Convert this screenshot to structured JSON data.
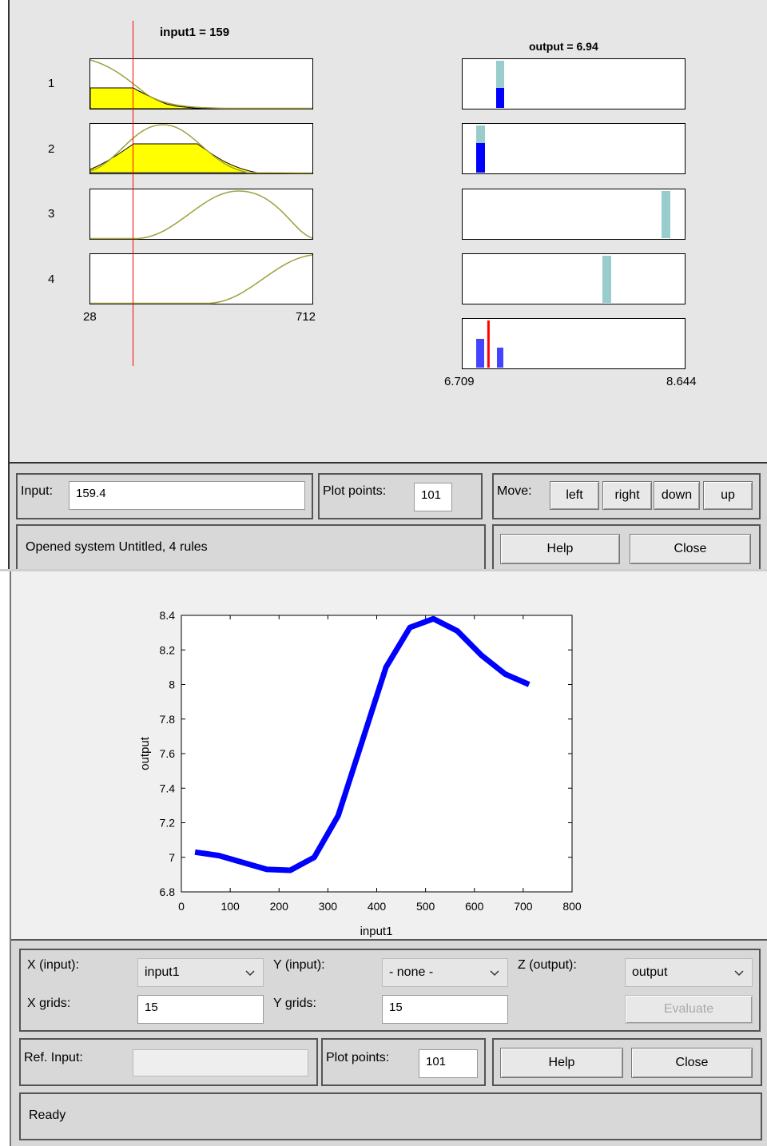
{
  "rule_viewer": {
    "input_title": "input1 = 159",
    "output_title": "output = 6.94",
    "rule_numbers": [
      "1",
      "2",
      "3",
      "4"
    ],
    "input_axis": {
      "min_label": "28",
      "max_label": "712",
      "min": 28,
      "max": 712
    },
    "output_axis": {
      "min_label": "6.709",
      "max_label": "8.644",
      "min": 6.709,
      "max": 8.644
    },
    "input_value": 159.4,
    "output_value": 6.94,
    "colors": {
      "fill": "#ffff00",
      "curve": "#a0a040",
      "marker": "#ff0000",
      "bar_light": "#99cccc",
      "bar_dark": "#0000ff",
      "agg_bar": "#4444ff"
    },
    "input_label": "Input:",
    "input_field": "159.4",
    "plot_points_label": "Plot points:",
    "plot_points_value": "101",
    "move_label": "Move:",
    "move_buttons": {
      "left": "left",
      "right": "right",
      "down": "down",
      "up": "up"
    },
    "status": "Opened system Untitled, 4 rules",
    "help_label": "Help",
    "close_label": "Close"
  },
  "surface_viewer": {
    "chart_data": {
      "type": "line",
      "xlabel": "input1",
      "ylabel": "output",
      "xlim": [
        0,
        800
      ],
      "ylim": [
        6.8,
        8.4
      ],
      "x_ticks": [
        "0",
        "100",
        "200",
        "300",
        "400",
        "500",
        "600",
        "700",
        "800"
      ],
      "y_ticks": [
        "6.8",
        "7",
        "7.2",
        "7.4",
        "7.6",
        "7.8",
        "8",
        "8.2",
        "8.4"
      ],
      "line_color": "#0000ff",
      "x": [
        28,
        77,
        126,
        175,
        223,
        272,
        321,
        370,
        419,
        468,
        516,
        565,
        614,
        663,
        712
      ],
      "y": [
        7.03,
        7.01,
        6.97,
        6.93,
        6.925,
        7.0,
        7.24,
        7.67,
        8.1,
        8.33,
        8.38,
        8.31,
        8.17,
        8.06,
        8.0
      ]
    },
    "x_input_label": "X (input):",
    "x_input_value": "input1",
    "y_input_label": "Y (input):",
    "y_input_value": "- none -",
    "z_output_label": "Z (output):",
    "z_output_value": "output",
    "x_grids_label": "X grids:",
    "x_grids_value": "15",
    "y_grids_label": "Y grids:",
    "y_grids_value": "15",
    "evaluate_label": "Evaluate",
    "ref_input_label": "Ref. Input:",
    "ref_input_value": "",
    "plot_points_label": "Plot points:",
    "plot_points_value": "101",
    "help_label": "Help",
    "close_label": "Close",
    "status": "Ready"
  }
}
